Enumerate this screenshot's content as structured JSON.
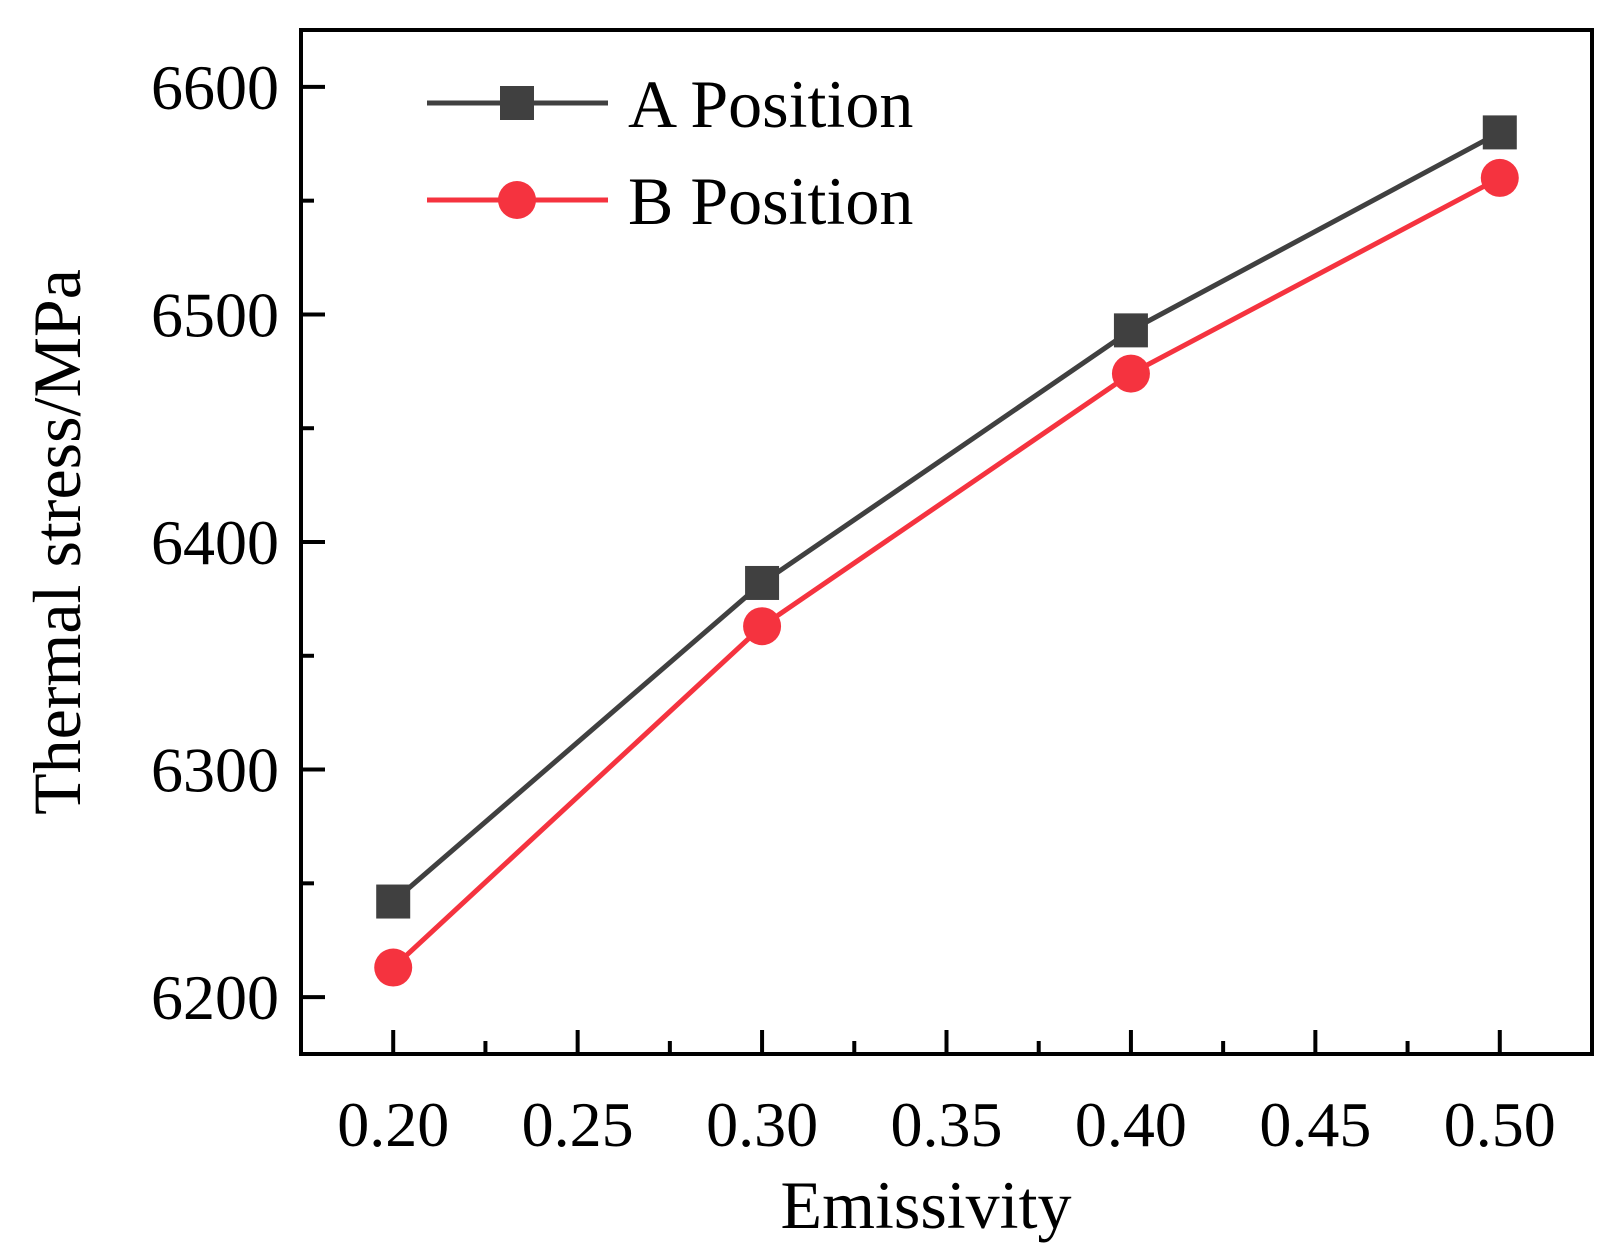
{
  "chart_data": {
    "type": "line",
    "title": "",
    "xlabel": "Emissivity",
    "ylabel": "Thermal stress/MPa",
    "xlim": [
      0.175,
      0.525
    ],
    "ylim": [
      6175,
      6625
    ],
    "x_ticks": [
      0.2,
      0.25,
      0.3,
      0.35,
      0.4,
      0.45,
      0.5
    ],
    "x_tick_labels": [
      "0.20",
      "0.25",
      "0.30",
      "0.35",
      "0.40",
      "0.45",
      "0.50"
    ],
    "x_minor_ticks": [
      0.225,
      0.275,
      0.325,
      0.375,
      0.425,
      0.475
    ],
    "y_ticks": [
      6200,
      6300,
      6400,
      6500,
      6600
    ],
    "y_tick_labels": [
      "6200",
      "6300",
      "6400",
      "6500",
      "6600"
    ],
    "y_minor_ticks": [
      6250,
      6350,
      6450,
      6550
    ],
    "x": [
      0.2,
      0.3,
      0.4,
      0.5
    ],
    "series": [
      {
        "name": "A Position",
        "values": [
          6242,
          6382,
          6493,
          6580
        ],
        "color": "#404040",
        "marker": "square"
      },
      {
        "name": "B Position",
        "values": [
          6213,
          6363,
          6474,
          6560
        ],
        "color": "#f5333f",
        "marker": "circle"
      }
    ],
    "legend": "top-left",
    "grid": false
  }
}
